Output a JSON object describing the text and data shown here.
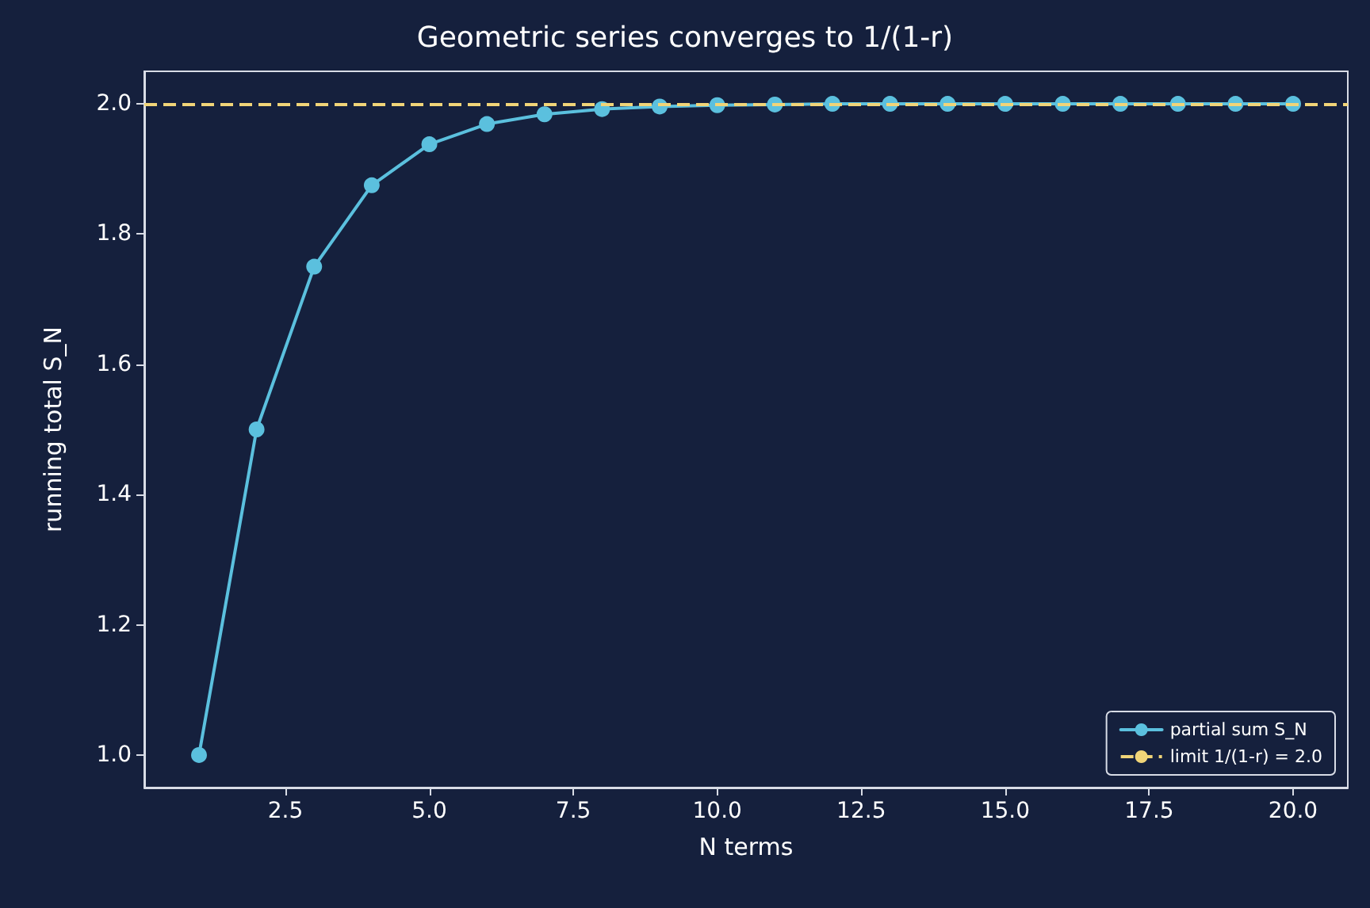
{
  "chart_data": {
    "type": "line",
    "title": "Geometric series converges to 1/(1-r)",
    "xlabel": "N terms",
    "ylabel": "running total S_N",
    "x": [
      1,
      2,
      3,
      4,
      5,
      6,
      7,
      8,
      9,
      10,
      11,
      12,
      13,
      14,
      15,
      16,
      17,
      18,
      19,
      20
    ],
    "series": [
      {
        "name": "partial sum S_N",
        "color": "#5bc0de",
        "values": [
          1.0,
          1.5,
          1.75,
          1.875,
          1.938,
          1.969,
          1.984,
          1.992,
          1.996,
          1.998,
          1.999,
          2.0,
          2.0,
          2.0,
          2.0,
          2.0,
          2.0,
          2.0,
          2.0,
          2.0
        ]
      }
    ],
    "xlim": [
      0.05,
      20.95
    ],
    "xticks": [
      {
        "value": 2.5,
        "label": "2.5"
      },
      {
        "value": 5,
        "label": "5.0"
      },
      {
        "value": 7.5,
        "label": "7.5"
      },
      {
        "value": 10,
        "label": "10.0"
      },
      {
        "value": 12.5,
        "label": "12.5"
      },
      {
        "value": 15,
        "label": "15.0"
      },
      {
        "value": 17.5,
        "label": "17.5"
      },
      {
        "value": 20,
        "label": "20.0"
      }
    ],
    "ylim": [
      0.95,
      2.05
    ],
    "yticks": [
      {
        "value": 1,
        "label": "1.0"
      },
      {
        "value": 1.2,
        "label": "1.2"
      },
      {
        "value": 1.4,
        "label": "1.4"
      },
      {
        "value": 1.6,
        "label": "1.6"
      },
      {
        "value": 1.8,
        "label": "1.8"
      },
      {
        "value": 2,
        "label": "2.0"
      }
    ],
    "ref_lines": [
      {
        "axis": "y",
        "value": 2.0,
        "label": "limit 1/(1-r) = 2.0",
        "color": "#f0d478",
        "line_style": "dashed"
      }
    ],
    "marker": "circle",
    "line_style": "solid",
    "grid": false,
    "legend": "bottom right"
  }
}
